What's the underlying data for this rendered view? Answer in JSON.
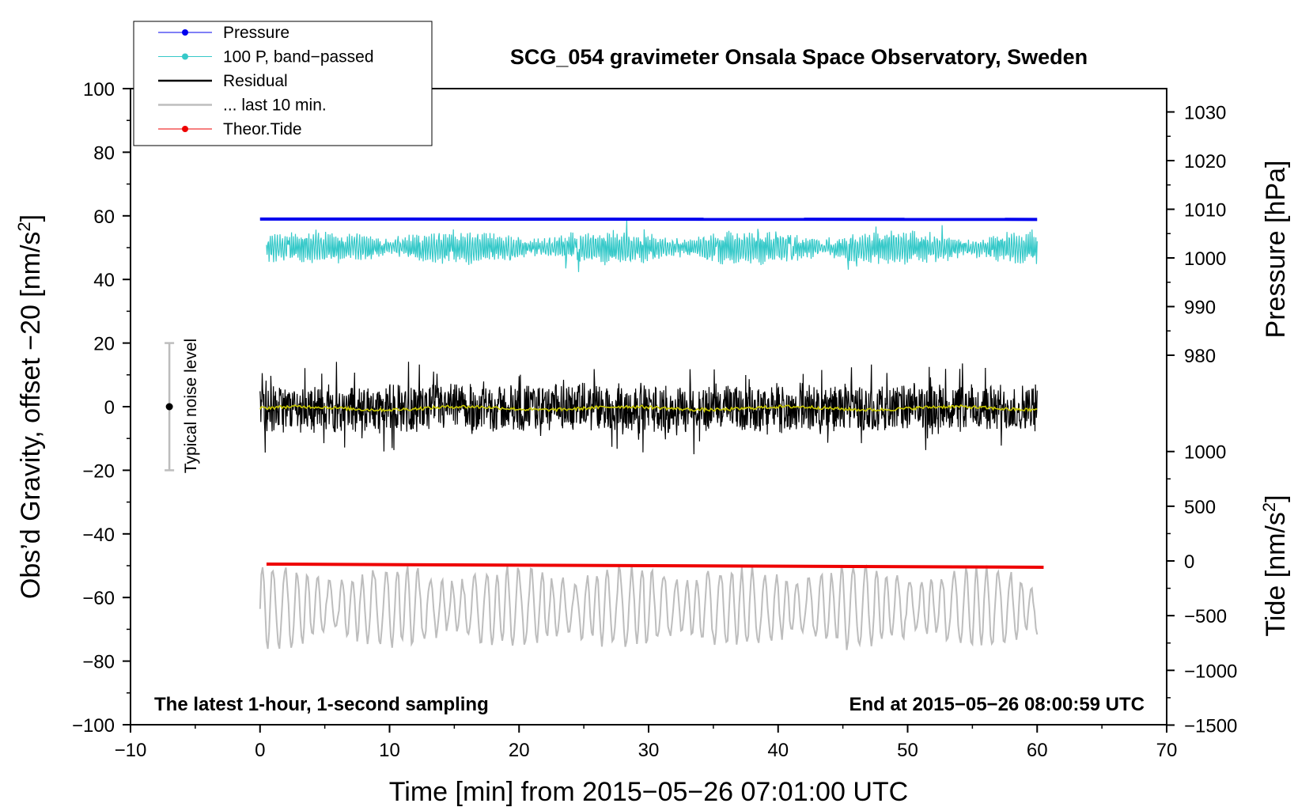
{
  "chart_data": {
    "type": "line",
    "title": "SCG_054 gravimeter Onsala Space Observatory, Sweden",
    "xlabel": "Time [min] from 2015−05−26 07:01:00 UTC",
    "ylabel": "Obs’d Gravity, offset −20 [nm/s²]",
    "ylabel_parts": {
      "main": "Obs’d Gravity, offset −20 [nm/s",
      "sup": "2",
      "end": "]"
    },
    "right_label_pressure": "Pressure [hPa]",
    "right_label_tide_parts": {
      "main": "Tide [nm/s",
      "sup": "2",
      "end": "]"
    },
    "xlim": [
      -10,
      70
    ],
    "ylim": [
      -100,
      100
    ],
    "x_ticks": [
      "−10",
      "0",
      "10",
      "20",
      "30",
      "40",
      "50",
      "60",
      "70"
    ],
    "y_ticks": [
      "−100",
      "−80",
      "−60",
      "−40",
      "−20",
      "0",
      "20",
      "40",
      "60",
      "80",
      "100"
    ],
    "pressure_ticks": [
      "980",
      "990",
      "1000",
      "1010",
      "1020",
      "1030"
    ],
    "tide_ticks": [
      "−1500",
      "−1000",
      "−500",
      "0",
      "500",
      "1000"
    ],
    "grid": false,
    "legend_placement": "top-left",
    "legend": [
      "Pressure",
      "100 P, band−passed",
      "Residual",
      "... last 10 min.",
      "Theor.Tide"
    ],
    "note_left": "The latest 1-hour, 1-second sampling",
    "note_right": "End at 2015−05−26 08:00:59 UTC",
    "noise_label": "Typical noise level",
    "noise_bar": {
      "x": -7,
      "center": 0,
      "low": -20,
      "high": 20
    },
    "colors": {
      "pressure": "#0000ee",
      "band_passed": "#36c9c9",
      "residual": "#000000",
      "residual_smooth": "#c8c800",
      "last10": "#bdbdbd",
      "tide": "#ee0000",
      "noise": "#bdbdbd"
    },
    "series": {
      "pressure_level": 59,
      "band_passed_center": 50,
      "band_passed_range": [
        39,
        58
      ],
      "residual_center": -0.5,
      "residual_range": [
        -16,
        16
      ],
      "last10_center": -63,
      "last10_range": [
        -78,
        -48
      ],
      "tide": {
        "x": [
          0.5,
          60.5
        ],
        "y": [
          -49.5,
          -50.5
        ]
      }
    }
  }
}
